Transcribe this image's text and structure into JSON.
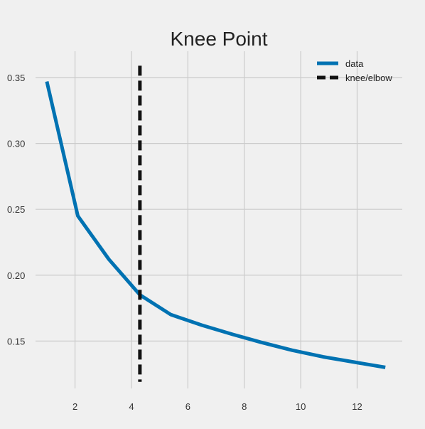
{
  "chart_data": {
    "type": "line",
    "title": "Knee Point",
    "xlabel": "",
    "ylabel": "",
    "xlim": [
      0.6,
      13.6
    ],
    "ylim": [
      0.114,
      0.37
    ],
    "x_ticks": [
      2,
      4,
      6,
      8,
      10,
      12
    ],
    "x_tick_labels": [
      "2",
      "4",
      "6",
      "8",
      "10",
      "12"
    ],
    "y_ticks": [
      0.15,
      0.2,
      0.25,
      0.3,
      0.35
    ],
    "y_tick_labels": [
      "0.15",
      "0.20",
      "0.25",
      "0.30",
      "0.35"
    ],
    "grid": true,
    "legend_position": "top-right",
    "series": [
      {
        "name": "data",
        "color": "#0072b2",
        "style": "solid",
        "x": [
          1.0,
          2.1,
          3.2,
          4.3,
          5.4,
          6.5,
          7.6,
          8.6,
          9.7,
          10.8,
          11.9,
          13.0
        ],
        "y": [
          0.347,
          0.245,
          0.212,
          0.185,
          0.17,
          0.162,
          0.155,
          0.149,
          0.143,
          0.138,
          0.134,
          0.13
        ]
      }
    ],
    "knee": {
      "name": "knee/elbow",
      "color": "#111111",
      "style": "dashed",
      "x": 4.3,
      "y_range": [
        0.119,
        0.359
      ]
    }
  }
}
